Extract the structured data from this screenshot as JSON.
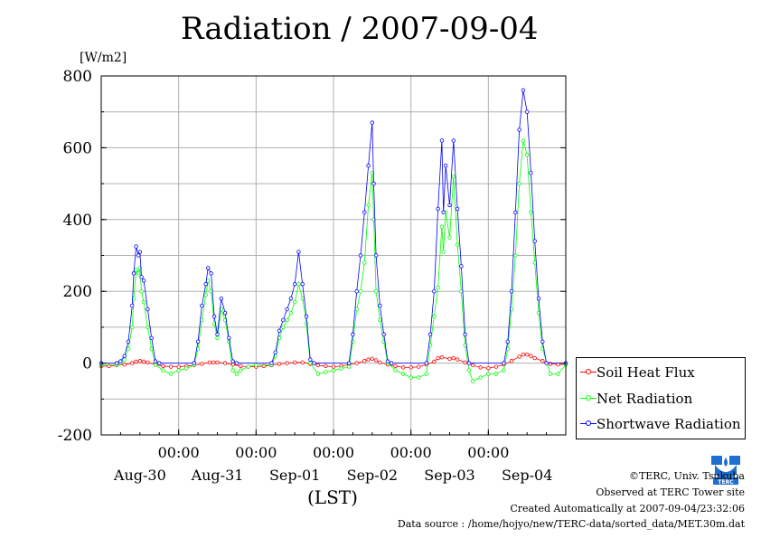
{
  "chart_data": {
    "type": "line",
    "title": "Radiation / 2007-09-04",
    "ylabel": "[W/m2]",
    "xlabel": "(LST)",
    "ylim": [
      -200,
      800
    ],
    "yticks": [
      -200,
      0,
      200,
      400,
      600,
      800
    ],
    "xlim_days": [
      0,
      6
    ],
    "x_time_labels": [
      "00:00",
      "00:00",
      "00:00",
      "00:00",
      "00:00"
    ],
    "x_date_labels": [
      "Aug-30",
      "Aug-31",
      "Sep-01",
      "Sep-02",
      "Sep-03",
      "Sep-04"
    ],
    "grid": true,
    "legend_position": "bottom-right outside plot",
    "series": [
      {
        "name": "Soil Heat Flux",
        "color": "#ff0000",
        "points": [
          [
            0.0,
            -8
          ],
          [
            0.1,
            -8
          ],
          [
            0.2,
            -6
          ],
          [
            0.3,
            -4
          ],
          [
            0.4,
            0
          ],
          [
            0.45,
            4
          ],
          [
            0.5,
            6
          ],
          [
            0.55,
            4
          ],
          [
            0.6,
            2
          ],
          [
            0.7,
            -4
          ],
          [
            0.8,
            -8
          ],
          [
            0.9,
            -10
          ],
          [
            1.0,
            -10
          ],
          [
            1.1,
            -8
          ],
          [
            1.2,
            -6
          ],
          [
            1.3,
            -2
          ],
          [
            1.4,
            2
          ],
          [
            1.45,
            2
          ],
          [
            1.5,
            2
          ],
          [
            1.6,
            0
          ],
          [
            1.7,
            -4
          ],
          [
            1.8,
            -8
          ],
          [
            1.9,
            -10
          ],
          [
            2.0,
            -10
          ],
          [
            2.1,
            -8
          ],
          [
            2.2,
            -6
          ],
          [
            2.3,
            -2
          ],
          [
            2.4,
            0
          ],
          [
            2.5,
            2
          ],
          [
            2.6,
            2
          ],
          [
            2.7,
            -2
          ],
          [
            2.8,
            -6
          ],
          [
            2.9,
            -8
          ],
          [
            3.0,
            -10
          ],
          [
            3.1,
            -8
          ],
          [
            3.2,
            -4
          ],
          [
            3.3,
            0
          ],
          [
            3.4,
            6
          ],
          [
            3.45,
            10
          ],
          [
            3.5,
            12
          ],
          [
            3.55,
            8
          ],
          [
            3.6,
            2
          ],
          [
            3.7,
            -4
          ],
          [
            3.8,
            -8
          ],
          [
            3.9,
            -12
          ],
          [
            4.0,
            -12
          ],
          [
            4.1,
            -10
          ],
          [
            4.2,
            -4
          ],
          [
            4.3,
            4
          ],
          [
            4.35,
            14
          ],
          [
            4.4,
            16
          ],
          [
            4.5,
            12
          ],
          [
            4.55,
            14
          ],
          [
            4.6,
            10
          ],
          [
            4.7,
            2
          ],
          [
            4.8,
            -6
          ],
          [
            4.9,
            -12
          ],
          [
            5.0,
            -14
          ],
          [
            5.1,
            -10
          ],
          [
            5.2,
            -4
          ],
          [
            5.3,
            6
          ],
          [
            5.4,
            18
          ],
          [
            5.45,
            24
          ],
          [
            5.5,
            24
          ],
          [
            5.55,
            20
          ],
          [
            5.6,
            14
          ],
          [
            5.7,
            6
          ],
          [
            5.8,
            -2
          ],
          [
            5.9,
            -4
          ],
          [
            6.0,
            -4
          ]
        ]
      },
      {
        "name": "Net Radiation",
        "color": "#00ff00",
        "points": [
          [
            0.0,
            -5
          ],
          [
            0.2,
            -5
          ],
          [
            0.25,
            0
          ],
          [
            0.3,
            10
          ],
          [
            0.35,
            40
          ],
          [
            0.4,
            100
          ],
          [
            0.42,
            180
          ],
          [
            0.45,
            260
          ],
          [
            0.48,
            250
          ],
          [
            0.5,
            265
          ],
          [
            0.52,
            200
          ],
          [
            0.55,
            170
          ],
          [
            0.6,
            100
          ],
          [
            0.65,
            40
          ],
          [
            0.7,
            -5
          ],
          [
            0.8,
            -20
          ],
          [
            0.9,
            -30
          ],
          [
            1.0,
            -20
          ],
          [
            1.1,
            -15
          ],
          [
            1.2,
            -5
          ],
          [
            1.25,
            40
          ],
          [
            1.3,
            120
          ],
          [
            1.35,
            190
          ],
          [
            1.38,
            230
          ],
          [
            1.42,
            200
          ],
          [
            1.46,
            110
          ],
          [
            1.5,
            70
          ],
          [
            1.55,
            150
          ],
          [
            1.6,
            120
          ],
          [
            1.65,
            60
          ],
          [
            1.7,
            -20
          ],
          [
            1.75,
            -30
          ],
          [
            1.8,
            -20
          ],
          [
            1.9,
            -10
          ],
          [
            2.0,
            -5
          ],
          [
            2.2,
            -5
          ],
          [
            2.25,
            20
          ],
          [
            2.3,
            70
          ],
          [
            2.35,
            100
          ],
          [
            2.4,
            120
          ],
          [
            2.45,
            140
          ],
          [
            2.5,
            170
          ],
          [
            2.55,
            220
          ],
          [
            2.6,
            180
          ],
          [
            2.65,
            110
          ],
          [
            2.7,
            0
          ],
          [
            2.8,
            -30
          ],
          [
            2.9,
            -25
          ],
          [
            3.0,
            -20
          ],
          [
            3.1,
            -15
          ],
          [
            3.2,
            -10
          ],
          [
            3.25,
            60
          ],
          [
            3.3,
            150
          ],
          [
            3.35,
            200
          ],
          [
            3.4,
            280
          ],
          [
            3.45,
            440
          ],
          [
            3.5,
            530
          ],
          [
            3.52,
            400
          ],
          [
            3.55,
            200
          ],
          [
            3.6,
            120
          ],
          [
            3.65,
            60
          ],
          [
            3.7,
            0
          ],
          [
            3.8,
            -20
          ],
          [
            3.9,
            -30
          ],
          [
            4.0,
            -40
          ],
          [
            4.1,
            -40
          ],
          [
            4.2,
            -30
          ],
          [
            4.25,
            50
          ],
          [
            4.3,
            130
          ],
          [
            4.35,
            210
          ],
          [
            4.4,
            380
          ],
          [
            4.42,
            310
          ],
          [
            4.45,
            420
          ],
          [
            4.5,
            350
          ],
          [
            4.55,
            520
          ],
          [
            4.6,
            330
          ],
          [
            4.65,
            200
          ],
          [
            4.7,
            50
          ],
          [
            4.75,
            -20
          ],
          [
            4.8,
            -50
          ],
          [
            4.9,
            -40
          ],
          [
            5.0,
            -30
          ],
          [
            5.1,
            -30
          ],
          [
            5.2,
            -20
          ],
          [
            5.25,
            40
          ],
          [
            5.3,
            150
          ],
          [
            5.35,
            300
          ],
          [
            5.4,
            500
          ],
          [
            5.45,
            620
          ],
          [
            5.5,
            580
          ],
          [
            5.55,
            420
          ],
          [
            5.6,
            280
          ],
          [
            5.65,
            140
          ],
          [
            5.7,
            40
          ],
          [
            5.8,
            -30
          ],
          [
            5.9,
            -30
          ],
          [
            6.0,
            -5
          ]
        ]
      },
      {
        "name": "Shortwave Radiation",
        "color": "#0000ff",
        "points": [
          [
            0.0,
            0
          ],
          [
            0.2,
            0
          ],
          [
            0.25,
            5
          ],
          [
            0.3,
            20
          ],
          [
            0.35,
            60
          ],
          [
            0.4,
            160
          ],
          [
            0.42,
            250
          ],
          [
            0.45,
            325
          ],
          [
            0.48,
            300
          ],
          [
            0.5,
            310
          ],
          [
            0.52,
            240
          ],
          [
            0.55,
            230
          ],
          [
            0.6,
            150
          ],
          [
            0.65,
            70
          ],
          [
            0.7,
            5
          ],
          [
            0.75,
            0
          ],
          [
            1.2,
            0
          ],
          [
            1.25,
            60
          ],
          [
            1.3,
            160
          ],
          [
            1.35,
            220
          ],
          [
            1.38,
            265
          ],
          [
            1.42,
            250
          ],
          [
            1.46,
            130
          ],
          [
            1.5,
            80
          ],
          [
            1.55,
            180
          ],
          [
            1.6,
            140
          ],
          [
            1.65,
            70
          ],
          [
            1.7,
            5
          ],
          [
            1.75,
            0
          ],
          [
            2.2,
            0
          ],
          [
            2.25,
            30
          ],
          [
            2.3,
            90
          ],
          [
            2.35,
            120
          ],
          [
            2.4,
            150
          ],
          [
            2.45,
            180
          ],
          [
            2.5,
            220
          ],
          [
            2.55,
            310
          ],
          [
            2.6,
            220
          ],
          [
            2.65,
            130
          ],
          [
            2.7,
            10
          ],
          [
            2.75,
            0
          ],
          [
            3.2,
            0
          ],
          [
            3.25,
            80
          ],
          [
            3.3,
            200
          ],
          [
            3.35,
            300
          ],
          [
            3.4,
            420
          ],
          [
            3.45,
            550
          ],
          [
            3.5,
            670
          ],
          [
            3.52,
            500
          ],
          [
            3.55,
            300
          ],
          [
            3.6,
            160
          ],
          [
            3.65,
            80
          ],
          [
            3.7,
            5
          ],
          [
            3.75,
            0
          ],
          [
            4.2,
            0
          ],
          [
            4.25,
            80
          ],
          [
            4.3,
            200
          ],
          [
            4.35,
            430
          ],
          [
            4.4,
            620
          ],
          [
            4.42,
            420
          ],
          [
            4.45,
            550
          ],
          [
            4.5,
            440
          ],
          [
            4.55,
            620
          ],
          [
            4.6,
            430
          ],
          [
            4.65,
            270
          ],
          [
            4.7,
            80
          ],
          [
            4.75,
            0
          ],
          [
            5.2,
            0
          ],
          [
            5.25,
            60
          ],
          [
            5.3,
            200
          ],
          [
            5.35,
            420
          ],
          [
            5.4,
            650
          ],
          [
            5.45,
            760
          ],
          [
            5.5,
            700
          ],
          [
            5.55,
            530
          ],
          [
            5.6,
            340
          ],
          [
            5.65,
            180
          ],
          [
            5.7,
            60
          ],
          [
            5.75,
            0
          ],
          [
            6.0,
            0
          ]
        ]
      }
    ]
  },
  "legend": {
    "items": [
      "Soil Heat Flux",
      "Net Radiation",
      "Shortwave Radiation"
    ]
  },
  "footer": {
    "copyright": "©TERC, Univ. Tsukuba",
    "site": "Observed at TERC Tower site",
    "created": "Created Automatically at 2007-09-04/23:32:06",
    "source": "Data source : /home/hojyo/new/TERC-data/sorted_data/MET.30m.dat"
  },
  "logo_text": "TERC"
}
